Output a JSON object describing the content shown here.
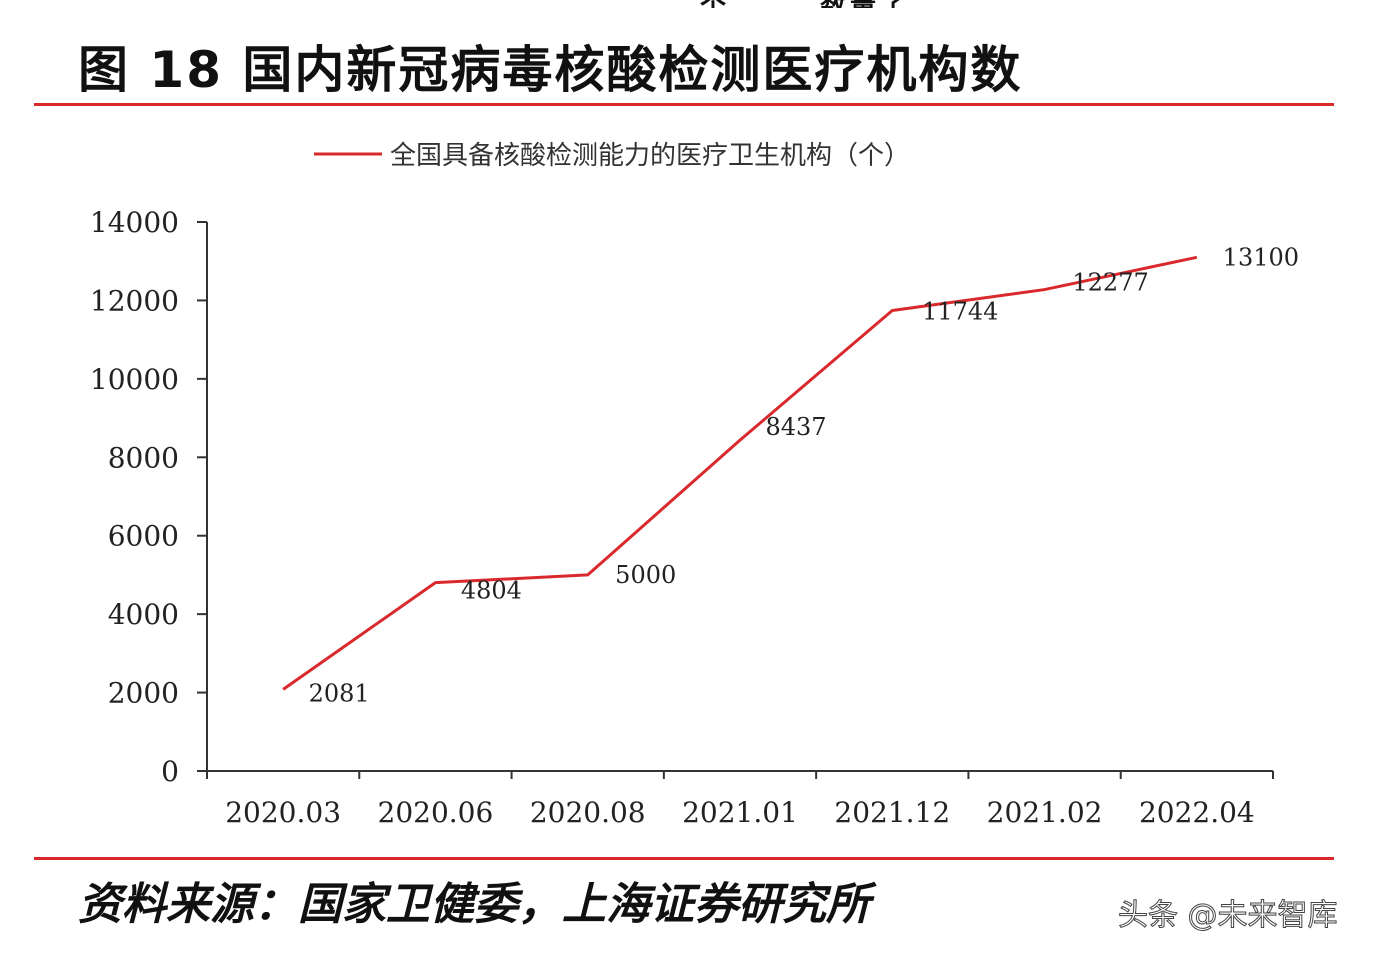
{
  "page": {
    "top_fragment": "个，……数量了",
    "figure_title": "图 18 国内新冠病毒核酸检测医疗机构数",
    "source": "资料来源：国家卫健委，上海证券研究所",
    "watermark": "头条 @未来智库"
  },
  "colors": {
    "accent": "#d9292d",
    "text": "#111111",
    "axis": "#333333"
  },
  "chart_data": {
    "type": "line",
    "title": "",
    "xlabel": "",
    "ylabel": "",
    "categories": [
      "2020.03",
      "2020.06",
      "2020.08",
      "2021.01",
      "2021.12",
      "2021.02",
      "2022.04"
    ],
    "series": [
      {
        "name": "全国具备核酸检测能力的医疗卫生机构（个）",
        "values": [
          2081,
          4804,
          5000,
          8437,
          11744,
          12277,
          13100
        ],
        "color": "#d9292d"
      }
    ],
    "data_labels": [
      "2081",
      "4804",
      "5000",
      "8437",
      "11744",
      "12277",
      "13100"
    ],
    "ylim": [
      0,
      14000
    ],
    "yticks": [
      0,
      2000,
      4000,
      6000,
      8000,
      10000,
      12000,
      14000
    ],
    "ytick_labels": [
      "0",
      "2000",
      "4000",
      "6000",
      "8000",
      "10000",
      "12000",
      "14000"
    ],
    "legend_position": "top-center",
    "grid": false
  }
}
